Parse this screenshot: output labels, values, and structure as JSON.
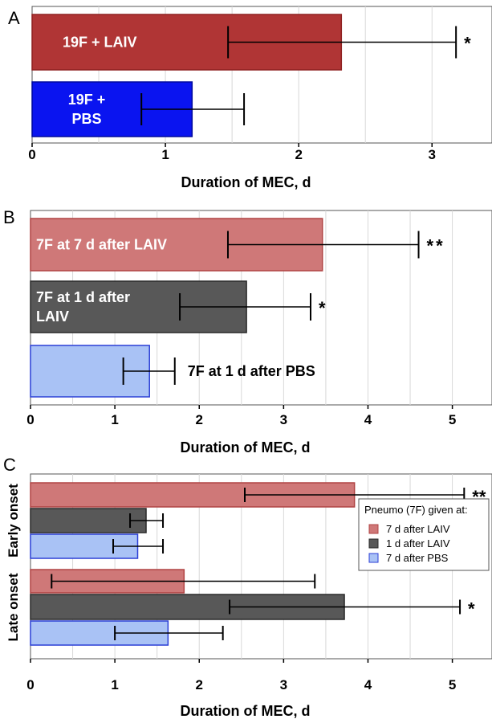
{
  "chart_data": [
    {
      "panel": "A",
      "type": "bar",
      "orientation": "horizontal",
      "xlabel": "Duration of MEC, d",
      "xlim": [
        0,
        3.45
      ],
      "xticks": [
        0,
        1,
        2,
        3
      ],
      "grid": true,
      "bars": [
        {
          "label_lines": [
            "19F + LAIV"
          ],
          "value": 2.32,
          "err_low": 1.47,
          "err_high": 3.18,
          "sig": "*",
          "color": "#b03535",
          "edge": "#8f2222"
        },
        {
          "label_lines": [
            "19F +",
            "PBS"
          ],
          "value": 1.2,
          "err_low": 0.82,
          "err_high": 1.59,
          "sig": "",
          "color": "#0a14f0",
          "edge": "#000a9c"
        }
      ]
    },
    {
      "panel": "B",
      "type": "bar",
      "orientation": "horizontal",
      "xlabel": "Duration of MEC, d",
      "xlim": [
        0,
        5.47
      ],
      "xticks": [
        0,
        1,
        2,
        3,
        4,
        5
      ],
      "grid": true,
      "bars": [
        {
          "label_lines": [
            "7F at 7 d after LAIV"
          ],
          "value": 3.46,
          "err_low": 2.34,
          "err_high": 4.6,
          "sig": "**",
          "color": "#cf7878",
          "edge": "#b04444"
        },
        {
          "label_lines": [
            "7F at 1 d after",
            "LAIV"
          ],
          "value": 2.56,
          "err_low": 1.77,
          "err_high": 3.32,
          "sig": "*",
          "color": "#585858",
          "edge": "#2a2a2a"
        },
        {
          "label_lines": [
            "7F at 1 d after PBS"
          ],
          "value": 1.41,
          "err_low": 1.1,
          "err_high": 1.71,
          "sig": "",
          "color": "#a9c2f5",
          "edge": "#2b3fd6"
        }
      ]
    },
    {
      "panel": "C",
      "type": "bar",
      "orientation": "horizontal",
      "xlabel": "Duration of MEC, d",
      "xlim": [
        0,
        5.47
      ],
      "xticks": [
        0,
        1,
        2,
        3,
        4,
        5
      ],
      "grid": true,
      "categories": [
        "Early onset",
        "Late onset"
      ],
      "legend": {
        "title": "Pneumo (7F) given at:",
        "placement": "right"
      },
      "series": [
        {
          "name": "7 d after LAIV",
          "values": [
            3.84,
            1.82
          ],
          "err_low": [
            2.54,
            0.25
          ],
          "err_high": [
            5.14,
            3.37
          ],
          "sig": [
            "**",
            ""
          ],
          "color": "#cf7878",
          "edge": "#b04444"
        },
        {
          "name": "1 d after LAIV",
          "values": [
            1.37,
            3.72
          ],
          "err_low": [
            1.18,
            2.36
          ],
          "err_high": [
            1.57,
            5.09
          ],
          "sig": [
            "",
            "*"
          ],
          "color": "#585858",
          "edge": "#2a2a2a"
        },
        {
          "name": "7 d after PBS",
          "values": [
            1.27,
            1.63
          ],
          "err_low": [
            0.98,
            1.0
          ],
          "err_high": [
            1.57,
            2.28
          ],
          "sig": [
            "",
            ""
          ],
          "color": "#a9c2f5",
          "edge": "#2b3fd6"
        }
      ]
    }
  ]
}
